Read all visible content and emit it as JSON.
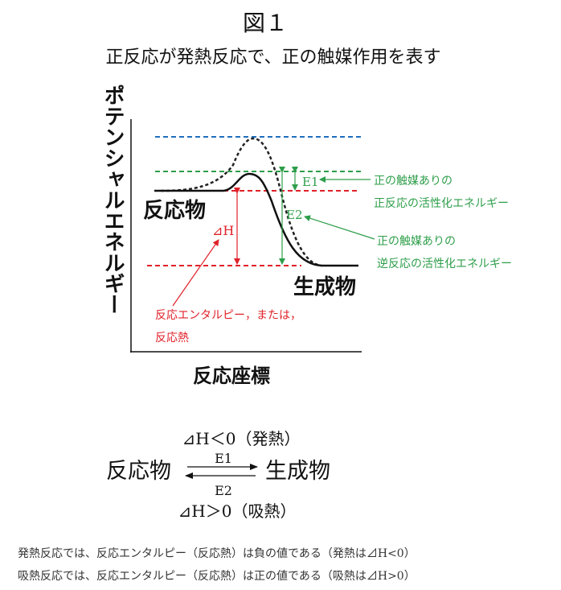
{
  "title": "図１",
  "subtitle": "正反応が発熱反応で、正の触媒作用を表す",
  "diagram": {
    "y_axis_label": "ポテンシャルエネルギー",
    "x_axis_label": "反応座標",
    "reactant_label": "反応物",
    "product_label": "生成物",
    "delta_h_label": "⊿H",
    "e1_label": "E1",
    "e2_label": "E2",
    "e1_note": [
      "正の触媒ありの",
      "正反応の活性化エネルギー"
    ],
    "e2_note": [
      "正の触媒ありの",
      "逆反応の活性化エネルギー"
    ],
    "delta_h_note": [
      "反応エンタルピー，または，",
      "反応熱"
    ],
    "colors": {
      "uncatalyzed_peak_line": "#1f6fc0",
      "catalyzed_peak_line": "#2e9e4a",
      "enthalpy_lines": "#e0222a",
      "activation_energy": "#2e9e4a",
      "enthalpy": "#e0222a",
      "curve": "#111111"
    }
  },
  "equation": {
    "top": "⊿H＜0（発熱）",
    "reactant": "反応物",
    "product": "生成物",
    "forward": "E1",
    "reverse": "E2",
    "bottom": "⊿H＞0（吸熱）"
  },
  "notes": [
    "発熱反応では、反応エンタルピー（反応熱）は負の値である（発熱は⊿H<0）",
    "吸熱反応では、反応エンタルピー（反応熱）は正の値である（吸熱は⊿H>0）"
  ]
}
